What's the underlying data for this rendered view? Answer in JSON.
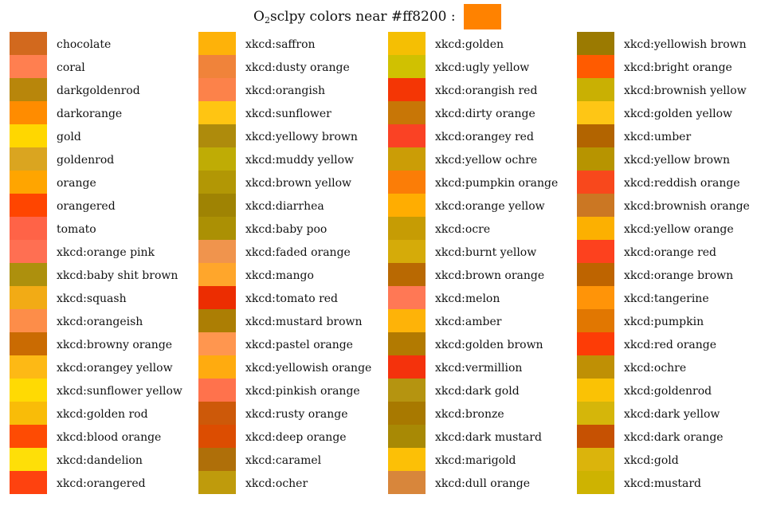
{
  "title": {
    "prefix": "O",
    "subscript": "2",
    "suffix": "sclpy colors near #ff8200 :",
    "swatch_color": "#ff8200"
  },
  "columns": [
    [
      {
        "name": "chocolate",
        "color": "#d2691e"
      },
      {
        "name": "coral",
        "color": "#ff7f50"
      },
      {
        "name": "darkgoldenrod",
        "color": "#b8860b"
      },
      {
        "name": "darkorange",
        "color": "#ff8c00"
      },
      {
        "name": "gold",
        "color": "#ffd700"
      },
      {
        "name": "goldenrod",
        "color": "#daa520"
      },
      {
        "name": "orange",
        "color": "#ffa500"
      },
      {
        "name": "orangered",
        "color": "#ff4500"
      },
      {
        "name": "tomato",
        "color": "#ff6347"
      },
      {
        "name": "xkcd:orange pink",
        "color": "#ff6f52"
      },
      {
        "name": "xkcd:baby shit brown",
        "color": "#ad900d"
      },
      {
        "name": "xkcd:squash",
        "color": "#f2ab15"
      },
      {
        "name": "xkcd:orangeish",
        "color": "#fd8d49"
      },
      {
        "name": "xkcd:browny orange",
        "color": "#ca6b02"
      },
      {
        "name": "xkcd:orangey yellow",
        "color": "#fdb915"
      },
      {
        "name": "xkcd:sunflower yellow",
        "color": "#ffda03"
      },
      {
        "name": "xkcd:golden rod",
        "color": "#f9bc08"
      },
      {
        "name": "xkcd:blood orange",
        "color": "#fe4b03"
      },
      {
        "name": "xkcd:dandelion",
        "color": "#fedf08"
      },
      {
        "name": "xkcd:orangered",
        "color": "#fe420f"
      }
    ],
    [
      {
        "name": "xkcd:saffron",
        "color": "#feb209"
      },
      {
        "name": "xkcd:dusty orange",
        "color": "#f0833a"
      },
      {
        "name": "xkcd:orangish",
        "color": "#fc824a"
      },
      {
        "name": "xkcd:sunflower",
        "color": "#ffc512"
      },
      {
        "name": "xkcd:yellowy brown",
        "color": "#ae8b0c"
      },
      {
        "name": "xkcd:muddy yellow",
        "color": "#bfac05"
      },
      {
        "name": "xkcd:brown yellow",
        "color": "#b29705"
      },
      {
        "name": "xkcd:diarrhea",
        "color": "#9f8303"
      },
      {
        "name": "xkcd:baby poo",
        "color": "#ab9004"
      },
      {
        "name": "xkcd:faded orange",
        "color": "#f0944d"
      },
      {
        "name": "xkcd:mango",
        "color": "#ffa62b"
      },
      {
        "name": "xkcd:tomato red",
        "color": "#ec2d01"
      },
      {
        "name": "xkcd:mustard brown",
        "color": "#ac7e04"
      },
      {
        "name": "xkcd:pastel orange",
        "color": "#ff964f"
      },
      {
        "name": "xkcd:yellowish orange",
        "color": "#ffab0f"
      },
      {
        "name": "xkcd:pinkish orange",
        "color": "#ff724c"
      },
      {
        "name": "xkcd:rusty orange",
        "color": "#cd5909"
      },
      {
        "name": "xkcd:deep orange",
        "color": "#dc4d01"
      },
      {
        "name": "xkcd:caramel",
        "color": "#af6f09"
      },
      {
        "name": "xkcd:ocher",
        "color": "#bf9b0c"
      }
    ],
    [
      {
        "name": "xkcd:golden",
        "color": "#f5bf03"
      },
      {
        "name": "xkcd:ugly yellow",
        "color": "#d0c101"
      },
      {
        "name": "xkcd:orangish red",
        "color": "#f43605"
      },
      {
        "name": "xkcd:dirty orange",
        "color": "#c87606"
      },
      {
        "name": "xkcd:orangey red",
        "color": "#fa4224"
      },
      {
        "name": "xkcd:yellow ochre",
        "color": "#cb9d06"
      },
      {
        "name": "xkcd:pumpkin orange",
        "color": "#fb7d07"
      },
      {
        "name": "xkcd:orange yellow",
        "color": "#ffad01"
      },
      {
        "name": "xkcd:ocre",
        "color": "#c69c04"
      },
      {
        "name": "xkcd:burnt yellow",
        "color": "#d5ab09"
      },
      {
        "name": "xkcd:brown orange",
        "color": "#b96902"
      },
      {
        "name": "xkcd:melon",
        "color": "#ff7855"
      },
      {
        "name": "xkcd:amber",
        "color": "#feb308"
      },
      {
        "name": "xkcd:golden brown",
        "color": "#b27a01"
      },
      {
        "name": "xkcd:vermillion",
        "color": "#f4320c"
      },
      {
        "name": "xkcd:dark gold",
        "color": "#b59410"
      },
      {
        "name": "xkcd:bronze",
        "color": "#a87900"
      },
      {
        "name": "xkcd:dark mustard",
        "color": "#a88905"
      },
      {
        "name": "xkcd:marigold",
        "color": "#fcc006"
      },
      {
        "name": "xkcd:dull orange",
        "color": "#d8863b"
      }
    ],
    [
      {
        "name": "xkcd:yellowish brown",
        "color": "#9b7a01"
      },
      {
        "name": "xkcd:bright orange",
        "color": "#ff5b00"
      },
      {
        "name": "xkcd:brownish yellow",
        "color": "#c9b003"
      },
      {
        "name": "xkcd:golden yellow",
        "color": "#fec615"
      },
      {
        "name": "xkcd:umber",
        "color": "#b26400"
      },
      {
        "name": "xkcd:yellow brown",
        "color": "#b79400"
      },
      {
        "name": "xkcd:reddish orange",
        "color": "#f8481c"
      },
      {
        "name": "xkcd:brownish orange",
        "color": "#cb7723"
      },
      {
        "name": "xkcd:yellow orange",
        "color": "#fcb001"
      },
      {
        "name": "xkcd:orange red",
        "color": "#fd411e"
      },
      {
        "name": "xkcd:orange brown",
        "color": "#be6400"
      },
      {
        "name": "xkcd:tangerine",
        "color": "#ff9408"
      },
      {
        "name": "xkcd:pumpkin",
        "color": "#e17701"
      },
      {
        "name": "xkcd:red orange",
        "color": "#fd3c06"
      },
      {
        "name": "xkcd:ochre",
        "color": "#bf9005"
      },
      {
        "name": "xkcd:goldenrod",
        "color": "#fac205"
      },
      {
        "name": "xkcd:dark yellow",
        "color": "#d5b60a"
      },
      {
        "name": "xkcd:dark orange",
        "color": "#c65102"
      },
      {
        "name": "xkcd:gold",
        "color": "#dbb40c"
      },
      {
        "name": "xkcd:mustard",
        "color": "#ceb301"
      }
    ]
  ]
}
